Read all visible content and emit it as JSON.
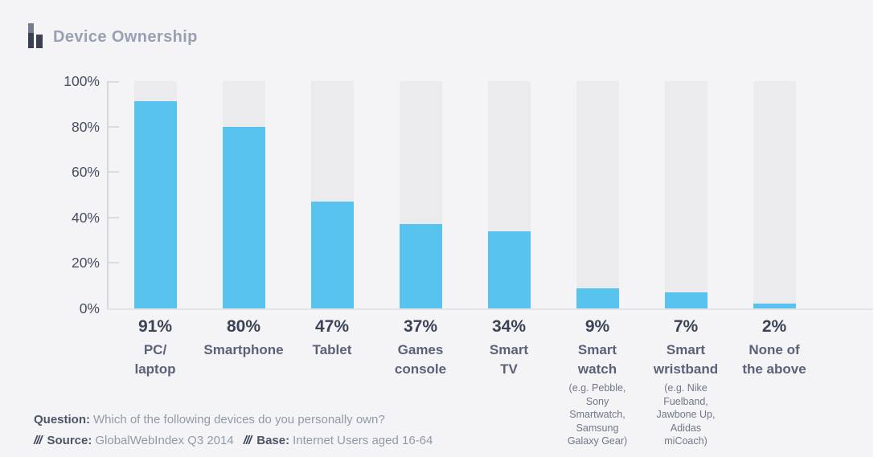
{
  "header": {
    "title": "Device Ownership"
  },
  "chart_data": {
    "type": "bar",
    "title": "Device Ownership",
    "categories": [
      "PC/laptop",
      "Smartphone",
      "Tablet",
      "Games console",
      "Smart TV",
      "Smart watch",
      "Smart wristband",
      "None of the above"
    ],
    "values": [
      91,
      80,
      47,
      37,
      34,
      9,
      7,
      2
    ],
    "value_labels": [
      "91%",
      "80%",
      "47%",
      "37%",
      "34%",
      "9%",
      "7%",
      "2%"
    ],
    "xlabel": "",
    "ylabel": "",
    "ylim": [
      0,
      100
    ],
    "yticks": [
      "100%",
      "80%",
      "60%",
      "40%",
      "20%",
      "0%"
    ],
    "grid": "off",
    "legend": "none",
    "bar_color": "#57c3ee",
    "track_color": "#ebebee",
    "background_color": "#f4f4f6"
  },
  "bars": [
    {
      "value_label": "91%",
      "label_lines": [
        "PC/",
        "laptop"
      ],
      "note_lines": []
    },
    {
      "value_label": "80%",
      "label_lines": [
        "Smartphone"
      ],
      "note_lines": []
    },
    {
      "value_label": "47%",
      "label_lines": [
        "Tablet"
      ],
      "note_lines": []
    },
    {
      "value_label": "37%",
      "label_lines": [
        "Games",
        "console"
      ],
      "note_lines": []
    },
    {
      "value_label": "34%",
      "label_lines": [
        "Smart",
        "TV"
      ],
      "note_lines": []
    },
    {
      "value_label": "9%",
      "label_lines": [
        "Smart",
        "watch"
      ],
      "note_lines": [
        "(e.g. Pebble,",
        "Sony",
        "Smartwatch,",
        "Samsung",
        "Galaxy Gear)"
      ]
    },
    {
      "value_label": "7%",
      "label_lines": [
        "Smart",
        "wristband"
      ],
      "note_lines": [
        "(e.g. Nike",
        "Fuelband,",
        "Jawbone Up,",
        "Adidas",
        "miCoach)"
      ]
    },
    {
      "value_label": "2%",
      "label_lines": [
        "None of",
        "the above"
      ],
      "note_lines": []
    }
  ],
  "footer": {
    "question_label": "Question:",
    "question_text": "Which of the following devices do you personally own?",
    "slashes": "///",
    "source_label": "Source:",
    "source_text": "GlobalWebIndex Q3 2014",
    "base_label": "Base:",
    "base_text": "Internet Users aged 16-64"
  }
}
